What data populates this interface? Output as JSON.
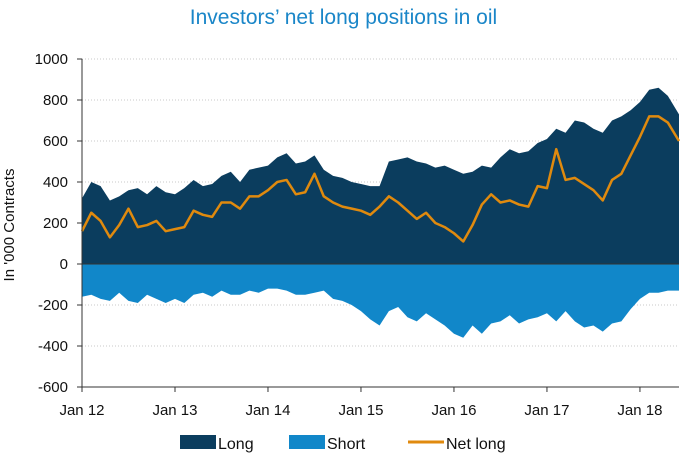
{
  "chart_data": {
    "type": "area",
    "title": "Investors’ net long positions in oil",
    "ylabel": "In '000 Contracts",
    "xlabel": "",
    "ylim": [
      -600,
      1000
    ],
    "yticks": [
      1000,
      800,
      600,
      400,
      200,
      0,
      -200,
      -400,
      -600
    ],
    "xlim": [
      2012.0,
      2018.42
    ],
    "xticks": [
      {
        "x": 2012,
        "label": "Jan 12"
      },
      {
        "x": 2013,
        "label": "Jan 13"
      },
      {
        "x": 2014,
        "label": "Jan 14"
      },
      {
        "x": 2015,
        "label": "Jan 15"
      },
      {
        "x": 2016,
        "label": "Jan 16"
      },
      {
        "x": 2017,
        "label": "Jan 17"
      },
      {
        "x": 2018,
        "label": "Jan 18"
      }
    ],
    "grid": true,
    "legend_position": "bottom",
    "series": [
      {
        "name": "Long",
        "color": "#0b3d5e",
        "x": [
          2012.0,
          2012.1,
          2012.2,
          2012.3,
          2012.4,
          2012.5,
          2012.6,
          2012.7,
          2012.8,
          2012.9,
          2013.0,
          2013.1,
          2013.2,
          2013.3,
          2013.4,
          2013.5,
          2013.6,
          2013.7,
          2013.8,
          2013.9,
          2014.0,
          2014.1,
          2014.2,
          2014.3,
          2014.4,
          2014.5,
          2014.6,
          2014.7,
          2014.8,
          2014.9,
          2015.0,
          2015.1,
          2015.2,
          2015.3,
          2015.4,
          2015.5,
          2015.6,
          2015.7,
          2015.8,
          2015.9,
          2016.0,
          2016.1,
          2016.2,
          2016.3,
          2016.4,
          2016.5,
          2016.6,
          2016.7,
          2016.8,
          2016.9,
          2017.0,
          2017.1,
          2017.2,
          2017.3,
          2017.4,
          2017.5,
          2017.6,
          2017.7,
          2017.8,
          2017.9,
          2018.0,
          2018.1,
          2018.2,
          2018.3,
          2018.42
        ],
        "values": [
          320,
          400,
          380,
          310,
          330,
          360,
          370,
          340,
          380,
          350,
          340,
          370,
          410,
          380,
          390,
          430,
          450,
          400,
          460,
          470,
          480,
          520,
          540,
          490,
          500,
          530,
          460,
          430,
          420,
          400,
          390,
          380,
          380,
          500,
          510,
          520,
          500,
          490,
          470,
          480,
          460,
          440,
          450,
          480,
          470,
          520,
          560,
          540,
          550,
          590,
          610,
          660,
          640,
          700,
          690,
          660,
          640,
          700,
          720,
          750,
          790,
          850,
          860,
          820,
          730
        ]
      },
      {
        "name": "Short",
        "color": "#1187c9",
        "x": [
          2012.0,
          2012.1,
          2012.2,
          2012.3,
          2012.4,
          2012.5,
          2012.6,
          2012.7,
          2012.8,
          2012.9,
          2013.0,
          2013.1,
          2013.2,
          2013.3,
          2013.4,
          2013.5,
          2013.6,
          2013.7,
          2013.8,
          2013.9,
          2014.0,
          2014.1,
          2014.2,
          2014.3,
          2014.4,
          2014.5,
          2014.6,
          2014.7,
          2014.8,
          2014.9,
          2015.0,
          2015.1,
          2015.2,
          2015.3,
          2015.4,
          2015.5,
          2015.6,
          2015.7,
          2015.8,
          2015.9,
          2016.0,
          2016.1,
          2016.2,
          2016.3,
          2016.4,
          2016.5,
          2016.6,
          2016.7,
          2016.8,
          2016.9,
          2017.0,
          2017.1,
          2017.2,
          2017.3,
          2017.4,
          2017.5,
          2017.6,
          2017.7,
          2017.8,
          2017.9,
          2018.0,
          2018.1,
          2018.2,
          2018.3,
          2018.42
        ],
        "values": [
          -160,
          -150,
          -170,
          -180,
          -140,
          -180,
          -190,
          -150,
          -170,
          -190,
          -170,
          -190,
          -150,
          -140,
          -160,
          -130,
          -150,
          -150,
          -130,
          -140,
          -120,
          -120,
          -130,
          -150,
          -150,
          -140,
          -130,
          -170,
          -180,
          -200,
          -230,
          -270,
          -300,
          -230,
          -210,
          -260,
          -280,
          -240,
          -270,
          -300,
          -340,
          -360,
          -300,
          -340,
          -290,
          -280,
          -250,
          -290,
          -270,
          -260,
          -240,
          -280,
          -230,
          -280,
          -310,
          -300,
          -330,
          -290,
          -280,
          -220,
          -170,
          -140,
          -140,
          -130,
          -130
        ]
      },
      {
        "name": "Net long",
        "color": "#e08a0e",
        "x": [
          2012.0,
          2012.1,
          2012.2,
          2012.3,
          2012.4,
          2012.5,
          2012.6,
          2012.7,
          2012.8,
          2012.9,
          2013.0,
          2013.1,
          2013.2,
          2013.3,
          2013.4,
          2013.5,
          2013.6,
          2013.7,
          2013.8,
          2013.9,
          2014.0,
          2014.1,
          2014.2,
          2014.3,
          2014.4,
          2014.5,
          2014.6,
          2014.7,
          2014.8,
          2014.9,
          2015.0,
          2015.1,
          2015.2,
          2015.3,
          2015.4,
          2015.5,
          2015.6,
          2015.7,
          2015.8,
          2015.9,
          2016.0,
          2016.1,
          2016.2,
          2016.3,
          2016.4,
          2016.5,
          2016.6,
          2016.7,
          2016.8,
          2016.9,
          2017.0,
          2017.1,
          2017.2,
          2017.3,
          2017.4,
          2017.5,
          2017.6,
          2017.7,
          2017.8,
          2017.9,
          2018.0,
          2018.1,
          2018.2,
          2018.3,
          2018.42
        ],
        "values": [
          160,
          250,
          210,
          130,
          190,
          270,
          180,
          190,
          210,
          160,
          170,
          180,
          260,
          240,
          230,
          300,
          300,
          270,
          330,
          330,
          360,
          400,
          410,
          340,
          350,
          440,
          330,
          300,
          280,
          270,
          260,
          240,
          280,
          330,
          300,
          260,
          220,
          250,
          200,
          180,
          150,
          110,
          190,
          290,
          340,
          300,
          310,
          290,
          280,
          380,
          370,
          560,
          410,
          420,
          390,
          360,
          310,
          410,
          440,
          530,
          620,
          720,
          720,
          690,
          600
        ]
      }
    ]
  }
}
